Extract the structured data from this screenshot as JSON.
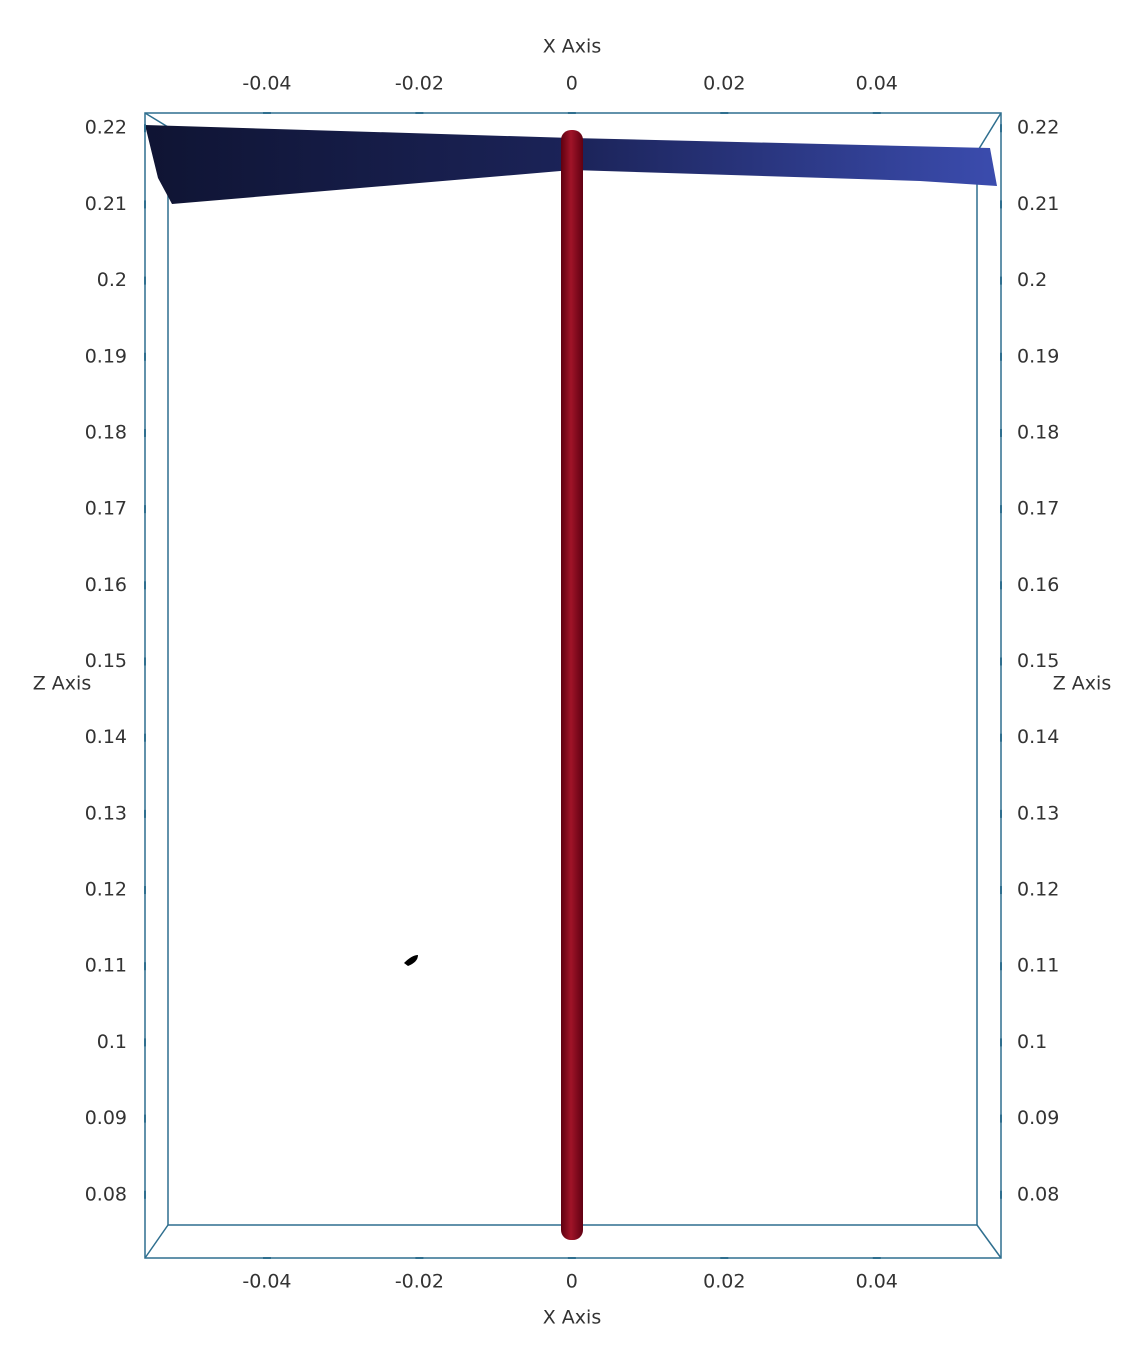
{
  "chart_data": {
    "type": "axes-grid",
    "xlabel": "X Axis",
    "ylabel": "Z Axis",
    "xlim": [
      -0.056,
      0.0563
    ],
    "ylim": [
      0.0717,
      0.222
    ],
    "xticks": [
      -0.04,
      -0.02,
      0,
      0.02,
      0.04
    ],
    "yticks": [
      0.08,
      0.09,
      0.1,
      0.11,
      0.12,
      0.13,
      0.14,
      0.15,
      0.16,
      0.17,
      0.18,
      0.19,
      0.2,
      0.21,
      0.22
    ]
  }
}
